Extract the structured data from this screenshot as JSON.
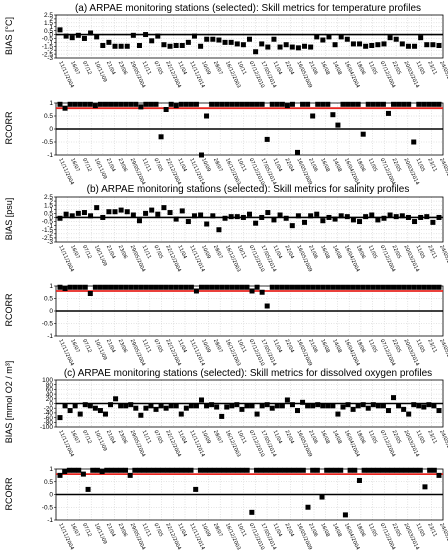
{
  "colors": {
    "reference_line": "#e8251f",
    "zero_line": "#000000",
    "markers": "#000000",
    "grid": "#c8c8c8"
  },
  "x_labels": [
    "11/11/2004",
    "16/07",
    "07/12",
    "10/11/09",
    "21/04",
    "23/06",
    "29/05/2004",
    "11/11",
    "07/05",
    "22/12/2004",
    "11/04",
    "11/11/2014",
    "10/09",
    "28/07",
    "16/12/2003",
    "10/11",
    "07/12/2010",
    "17/05/2014",
    "11/04",
    "22/04",
    "16/05/2009",
    "21/06",
    "16/08",
    "14/08",
    "16/04/2004",
    "18/06",
    "11/05",
    "07/12/2004",
    "22/05",
    "20/03/2014",
    "11/05",
    "23/11",
    "24/05/2004"
  ],
  "chart_data": [
    {
      "type": "scatter",
      "panel": "temperature-bias",
      "title": "(a) ARPAE monitoring stations (selected): Skill metrics for temperature profiles",
      "ylabel": "BIAS [°C]",
      "ylim": [
        -3,
        2.5
      ],
      "yticks": [
        2.5,
        2,
        1.5,
        1,
        0.5,
        0,
        -0.5,
        -1,
        -1.5,
        -2,
        -2.5,
        -3
      ],
      "ytick_labels": [
        "2.5",
        "2",
        "1.5",
        "1",
        "0.5",
        "0",
        "-0.5",
        "-1",
        "-1.5",
        "-2",
        "-2.5",
        "-3"
      ],
      "reference_line": 0,
      "values": [
        0.6,
        -0.2,
        -0.4,
        -0.1,
        -0.5,
        0.2,
        -0.3,
        -1.4,
        -1.0,
        -1.5,
        -1.5,
        -1.5,
        -0.1,
        -1.4,
        0.0,
        -0.8,
        -0.2,
        -1.3,
        -1.5,
        -1.4,
        -1.4,
        -1.0,
        -0.2,
        -1.5,
        -0.6,
        -0.6,
        -0.7,
        -1.0,
        -1.0,
        -1.2,
        -1.3,
        -0.6,
        -2.2,
        -1.2,
        -1.6,
        -0.6,
        -1.6,
        -1.3,
        -1.6,
        -1.7,
        -1.5,
        -1.6,
        -0.3,
        -0.7,
        -0.3,
        -1.3,
        -0.3,
        -0.6,
        -1.2,
        -1.2,
        -1.5,
        -1.4,
        -1.3,
        -1.2,
        -0.4,
        -0.6,
        -1.2,
        -1.5,
        -1.5,
        -0.4,
        -1.3,
        -1.3,
        -1.4
      ]
    },
    {
      "type": "scatter",
      "panel": "temperature-rcorr",
      "title": "",
      "ylabel": "RCORR",
      "ylim": [
        -1,
        1
      ],
      "yticks": [
        1,
        0.5,
        0,
        -0.5,
        -1
      ],
      "ytick_labels": [
        "1",
        "0.5",
        "0",
        "-0.5",
        "-1"
      ],
      "reference_line": 0.8,
      "zero_line": 0,
      "values": [
        0.95,
        0.8,
        0.95,
        0.95,
        0.95,
        0.95,
        0.95,
        0.9,
        0.95,
        0.95,
        0.95,
        0.95,
        0.95,
        0.95,
        0.95,
        0.95,
        0.85,
        0.95,
        0.95,
        0.95,
        -0.3,
        0.75,
        0.95,
        0.9,
        0.95,
        0.95,
        0.95,
        0.95,
        -1.0,
        0.5,
        0.95,
        0.95,
        0.95,
        0.95,
        0.95,
        0.95,
        0.95,
        0.95,
        0.95,
        0.95,
        0.95,
        -0.4,
        0.95,
        0.95,
        0.95,
        0.9,
        0.95,
        -0.9,
        0.95,
        0.95,
        0.5,
        0.95,
        0.95,
        0.95,
        0.55,
        0.15,
        0.95,
        0.95,
        0.95,
        0.95,
        -0.2,
        0.95,
        0.95,
        0.95,
        0.95,
        0.6,
        0.95,
        0.95,
        0.95,
        0.95,
        -0.5,
        0.95,
        0.95,
        0.95,
        0.95,
        0.95
      ]
    },
    {
      "type": "scatter",
      "panel": "salinity-bias",
      "title": "(b) ARPAE monitoring stations (selected): Skill metrics for salinity profiles",
      "ylabel": "BIAS [psu]",
      "ylim": [
        -3,
        2.5
      ],
      "yticks": [
        2.5,
        2,
        1.5,
        1,
        0.5,
        0,
        -0.5,
        -1,
        -1.5,
        -2,
        -2.5,
        -3
      ],
      "ytick_labels": [
        "2.5",
        "2",
        "1.5",
        "1",
        "0.5",
        "0",
        "-0.5",
        "-1",
        "-1.5",
        "-2",
        "-2.5",
        "-3"
      ],
      "reference_line": 0,
      "values": [
        -0.1,
        0.4,
        0.2,
        0.5,
        0.6,
        0.2,
        1.2,
        0.0,
        0.7,
        0.7,
        0.9,
        0.7,
        0.3,
        -0.4,
        0.5,
        0.9,
        0.4,
        1.2,
        0.6,
        -0.2,
        0.8,
        -0.5,
        0.2,
        0.3,
        -0.8,
        0.2,
        -1.5,
        -0.1,
        0.1,
        0.1,
        0.0,
        0.4,
        -0.7,
        0.0,
        0.6,
        -0.3,
        0.3,
        -0.1,
        -1.0,
        0.2,
        -0.6,
        0.2,
        0.4,
        -0.4,
        0.0,
        -0.2,
        0.2,
        0.1,
        -0.3,
        -0.5,
        0.1,
        0.3,
        -0.3,
        -0.1,
        0.3,
        0.1,
        0.2,
        0.0,
        -0.5,
        0.0,
        0.1,
        -0.6,
        0.0
      ]
    },
    {
      "type": "scatter",
      "panel": "salinity-rcorr",
      "title": "",
      "ylabel": "RCORR",
      "ylim": [
        -1,
        1
      ],
      "yticks": [
        1,
        0.5,
        0,
        -0.5,
        -1
      ],
      "ytick_labels": [
        "1",
        "0.5",
        "0",
        "-0.5",
        "-1"
      ],
      "reference_line": 0.8,
      "zero_line": 0,
      "values": [
        0.95,
        0.9,
        0.95,
        0.95,
        0.95,
        0.95,
        0.7,
        0.95,
        0.95,
        0.95,
        0.95,
        0.95,
        0.95,
        0.95,
        0.95,
        0.95,
        0.95,
        0.95,
        0.95,
        0.95,
        0.95,
        0.95,
        0.95,
        0.95,
        0.95,
        0.95,
        0.95,
        0.8,
        0.95,
        0.95,
        0.95,
        0.95,
        0.95,
        0.95,
        0.95,
        0.95,
        0.95,
        0.95,
        0.8,
        0.95,
        0.75,
        0.2,
        0.95,
        0.95,
        0.95,
        0.95,
        0.95,
        0.95,
        0.95,
        0.95,
        0.95,
        0.95,
        0.95,
        0.95,
        0.95,
        0.95,
        0.95,
        0.95,
        0.95,
        0.95,
        0.95,
        0.95,
        0.95,
        0.95,
        0.95,
        0.95,
        0.95,
        0.95,
        0.95,
        0.95,
        0.95,
        0.95,
        0.95,
        0.95,
        0.95,
        0.95
      ]
    },
    {
      "type": "scatter",
      "panel": "oxygen-bias",
      "title": "(c) ARPAE monitoring stations (selected): Skill metrics for dissolved oxygen profiles",
      "ylabel": "BIAS [mmol O2 / m³]",
      "ylim": [
        -100,
        100
      ],
      "yticks": [
        100,
        80,
        60,
        40,
        20,
        0,
        -20,
        -40,
        -60,
        -80,
        -100
      ],
      "ytick_labels": [
        "100",
        "80",
        "60",
        "40",
        "20",
        "0",
        "-20",
        "-40",
        "-60",
        "-80",
        "-100"
      ],
      "reference_line": 0,
      "values": [
        -60,
        -10,
        -30,
        -10,
        -45,
        -5,
        -10,
        -20,
        -30,
        -45,
        -5,
        20,
        -10,
        -10,
        -5,
        -20,
        -50,
        -20,
        -10,
        -25,
        -10,
        -20,
        -10,
        -10,
        -45,
        -20,
        -10,
        -10,
        15,
        -10,
        -5,
        -15,
        -55,
        -15,
        -10,
        -5,
        -25,
        -10,
        -10,
        -45,
        -10,
        -5,
        -20,
        -10,
        -10,
        15,
        -5,
        -30,
        5,
        -10,
        -10,
        -5,
        -10,
        -10,
        -10,
        -45,
        -15,
        -5,
        -25,
        -10,
        -5,
        -20,
        -5,
        -10,
        -10,
        -30,
        25,
        -10,
        -25,
        -45,
        -5,
        -10,
        -15,
        -5,
        -10,
        -30
      ]
    },
    {
      "type": "scatter",
      "panel": "oxygen-rcorr",
      "title": "",
      "ylabel": "RCORR",
      "ylim": [
        -1,
        1
      ],
      "yticks": [
        1,
        0.5,
        0,
        -0.5,
        -1
      ],
      "ytick_labels": [
        "1",
        "0.5",
        "0",
        "-0.5",
        "-1"
      ],
      "reference_line": 0.8,
      "zero_line": 0,
      "values": [
        0.75,
        0.9,
        0.95,
        0.95,
        0.95,
        0.8,
        0.2,
        0.95,
        0.95,
        0.9,
        0.95,
        0.95,
        0.95,
        0.95,
        0.95,
        0.75,
        0.95,
        0.95,
        0.95,
        0.95,
        0.95,
        0.95,
        0.95,
        0.95,
        0.95,
        0.95,
        0.95,
        0.95,
        0.95,
        0.2,
        0.95,
        0.95,
        0.95,
        0.95,
        0.95,
        0.95,
        0.95,
        0.95,
        0.95,
        0.95,
        0.95,
        -0.7,
        0.95,
        0.95,
        0.95,
        0.95,
        0.95,
        0.95,
        0.95,
        0.95,
        0.95,
        0.95,
        0.95,
        -0.5,
        0.95,
        0.95,
        -0.1,
        0.95,
        0.95,
        0.95,
        0.95,
        -0.8,
        0.95,
        0.95,
        0.55,
        0.95,
        0.95,
        0.95,
        0.95,
        0.95,
        0.95,
        0.95,
        0.95,
        0.95,
        0.95,
        0.95,
        0.95,
        0.95,
        0.3,
        0.95,
        0.95,
        0.75
      ]
    }
  ]
}
